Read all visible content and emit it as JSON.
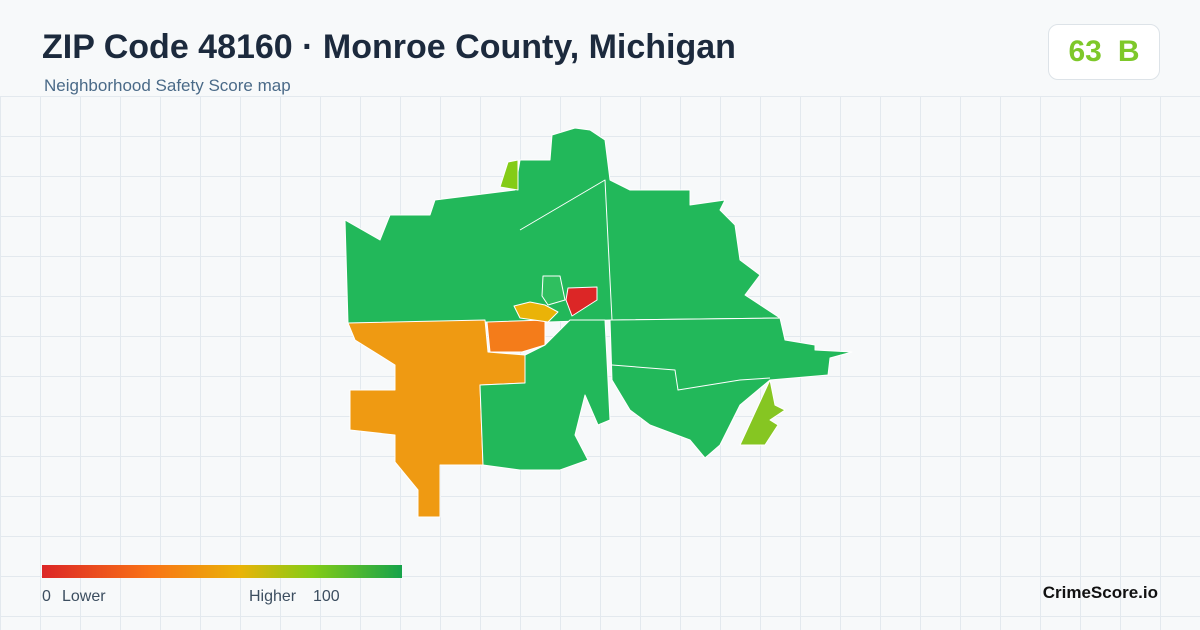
{
  "header": {
    "title": "ZIP Code 48160 · Monroe County, Michigan",
    "subtitle": "Neighborhood Safety Score map"
  },
  "badge": {
    "score": 63,
    "grade": "B"
  },
  "legend": {
    "min": 0,
    "min_label": "Lower",
    "max_label": "Higher",
    "max": 100
  },
  "brand": "CrimeScore.io"
}
